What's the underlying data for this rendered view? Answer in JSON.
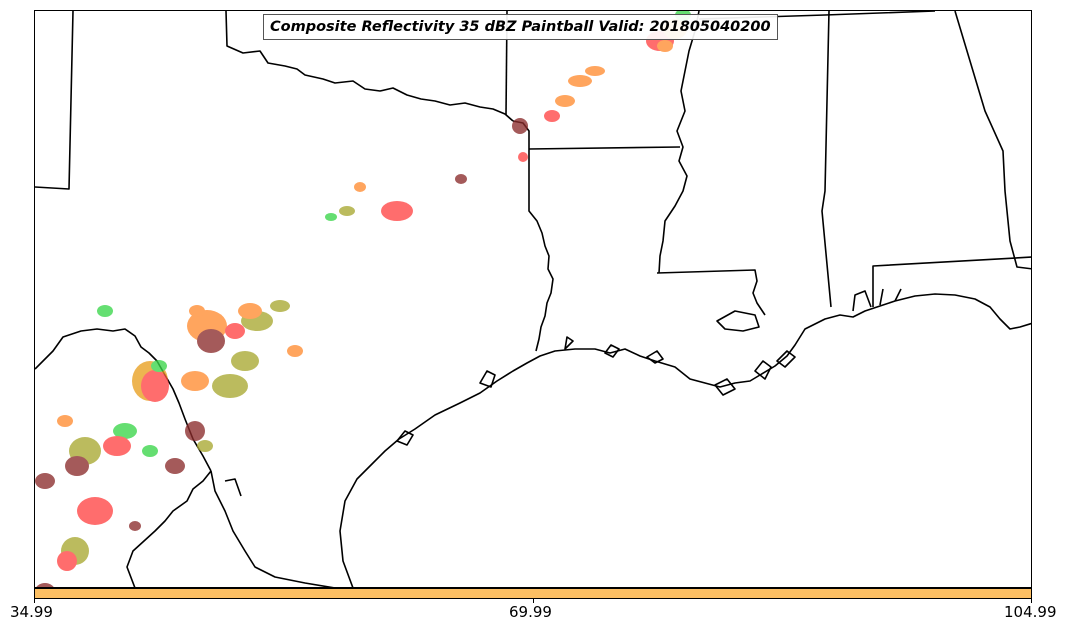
{
  "title": "Composite Reflectivity 35 dBZ Paintball Valid: 201805040200",
  "colorbar": {
    "color": "#fcbf63",
    "ticks": [
      "34.99",
      "69.99",
      "104.99"
    ]
  },
  "map": {
    "border_color": "#000000",
    "echo_colors": [
      "#ff4545",
      "#ff8c32",
      "#3ad64a",
      "#a8a832",
      "#8b2c2c",
      "#e8a020"
    ]
  }
}
